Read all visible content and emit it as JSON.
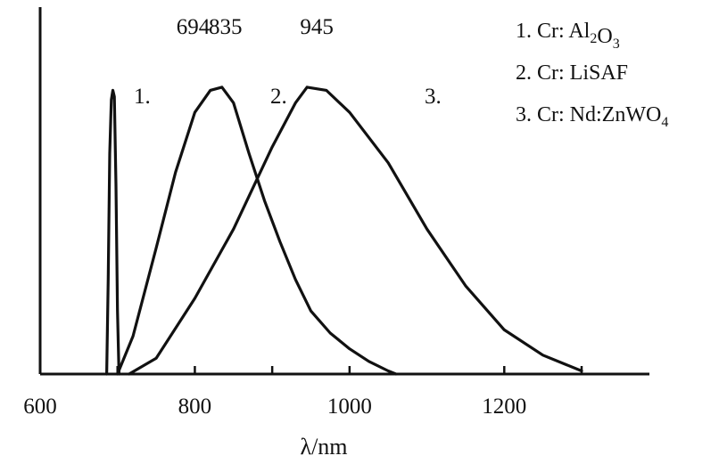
{
  "chart_data": {
    "type": "line",
    "xlabel": "λ/nm",
    "ylabel": "",
    "title": "",
    "xlim": [
      600,
      1300
    ],
    "ylim": [
      0,
      1
    ],
    "grid": false,
    "legend_position": "top-right",
    "x_ticks": [
      {
        "value": 600,
        "label": "600"
      },
      {
        "value": 700,
        "label": ""
      },
      {
        "value": 800,
        "label": "800"
      },
      {
        "value": 900,
        "label": ""
      },
      {
        "value": 1000,
        "label": "1000"
      },
      {
        "value": 1200,
        "label": "1200"
      },
      {
        "value": 1300,
        "label": ""
      }
    ],
    "peak_labels": [
      {
        "text": "694",
        "x": 694
      },
      {
        "text": "835",
        "x": 835
      },
      {
        "text": "945",
        "x": 945
      }
    ],
    "curve_labels": [
      {
        "text": "1.",
        "series": 0
      },
      {
        "text": "2.",
        "series": 1
      },
      {
        "text": "3.",
        "series": 2
      }
    ],
    "legend": [
      {
        "number": "1.",
        "name": "Cr: Al",
        "sub1": "2",
        "mid": "O",
        "sub2": "3"
      },
      {
        "number": "2.",
        "name": "Cr: LiSAF",
        "sub1": "",
        "mid": "",
        "sub2": ""
      },
      {
        "number": "3.",
        "name": "Cr: Nd:ZnWO",
        "sub1": "",
        "mid": "",
        "sub2": "4"
      }
    ],
    "series": [
      {
        "name": "Cr: Al2O3",
        "points": [
          [
            686,
            0.0
          ],
          [
            688,
            0.3
          ],
          [
            690,
            0.7
          ],
          [
            692,
            0.87
          ],
          [
            694,
            0.9
          ],
          [
            696,
            0.88
          ],
          [
            698,
            0.6
          ],
          [
            700,
            0.2
          ],
          [
            702,
            0.0
          ]
        ]
      },
      {
        "name": "Cr: LiSAF",
        "points": [
          [
            700,
            0.0
          ],
          [
            720,
            0.12
          ],
          [
            750,
            0.4
          ],
          [
            775,
            0.64
          ],
          [
            800,
            0.83
          ],
          [
            820,
            0.9
          ],
          [
            835,
            0.91
          ],
          [
            850,
            0.86
          ],
          [
            870,
            0.7
          ],
          [
            890,
            0.55
          ],
          [
            910,
            0.42
          ],
          [
            930,
            0.3
          ],
          [
            950,
            0.2
          ],
          [
            975,
            0.13
          ],
          [
            1000,
            0.08
          ],
          [
            1025,
            0.04
          ],
          [
            1050,
            0.01
          ],
          [
            1060,
            0.0
          ]
        ]
      },
      {
        "name": "Cr: Nd:ZnWO4",
        "points": [
          [
            715,
            0.0
          ],
          [
            750,
            0.05
          ],
          [
            800,
            0.24
          ],
          [
            850,
            0.46
          ],
          [
            900,
            0.72
          ],
          [
            930,
            0.86
          ],
          [
            945,
            0.91
          ],
          [
            970,
            0.9
          ],
          [
            1000,
            0.83
          ],
          [
            1050,
            0.67
          ],
          [
            1100,
            0.46
          ],
          [
            1150,
            0.28
          ],
          [
            1200,
            0.14
          ],
          [
            1250,
            0.06
          ],
          [
            1300,
            0.01
          ]
        ]
      }
    ]
  }
}
